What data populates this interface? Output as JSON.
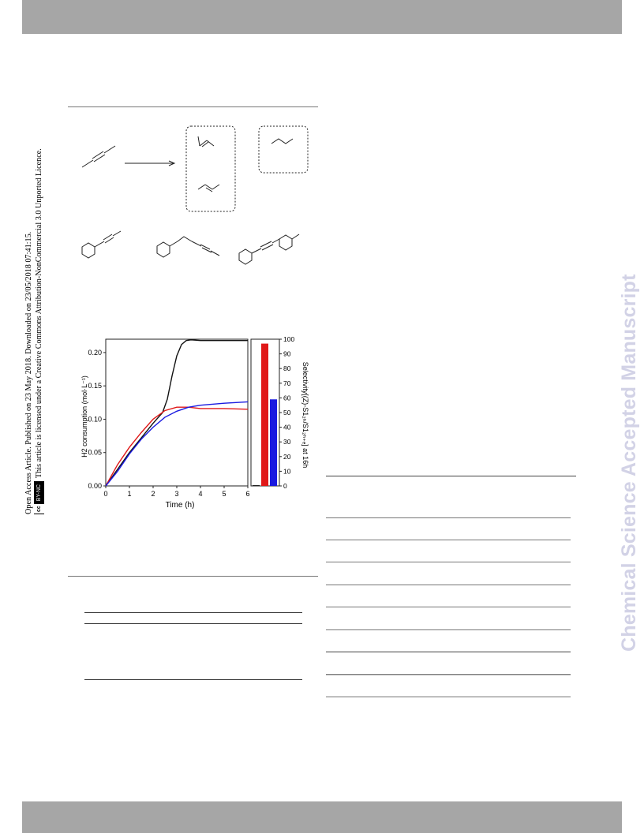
{
  "side_notice": {
    "line1": "Open Access Article. Published on 23 May 2018. Downloaded on 23/05/2018 07:41:15.",
    "line2": "This article is licensed under a Creative Commons Attribution-NonCommercial 3.0 Unported Licence.",
    "badge_cc": "cc",
    "badge_text": "BY-NC"
  },
  "watermark": "Chemical Science Accepted Manuscript",
  "chart_data": {
    "type": "line",
    "title": "",
    "xlabel": "Time (h)",
    "ylabel_left": "H2 consumption (mol·L⁻¹)",
    "ylabel_right": "Selectivity[(Z)-S1₂ₕ/S1₂ₕ₊ₑ] at 16h",
    "xlim": [
      0,
      6
    ],
    "ylim": [
      0,
      0.22
    ],
    "y2lim": [
      0,
      100
    ],
    "x_ticks": [
      "0",
      "1",
      "2",
      "3",
      "4",
      "5",
      "6"
    ],
    "y_ticks": [
      "0.00",
      "0.05",
      "0.10",
      "0.15",
      "0.20"
    ],
    "y2_ticks": [
      "0",
      "10",
      "20",
      "30",
      "40",
      "50",
      "60",
      "70",
      "80",
      "90",
      "100"
    ],
    "series": [
      {
        "color": "#111111",
        "x": [
          0,
          0.5,
          1,
          1.5,
          2,
          2.4,
          2.6,
          2.8,
          3.0,
          3.2,
          3.4,
          3.6,
          4,
          5,
          6
        ],
        "y": [
          0,
          0.025,
          0.05,
          0.072,
          0.094,
          0.11,
          0.13,
          0.165,
          0.195,
          0.212,
          0.218,
          0.219,
          0.218,
          0.218,
          0.218
        ]
      },
      {
        "color": "#e01818",
        "x": [
          0,
          0.5,
          1,
          1.5,
          2,
          2.5,
          3,
          3.5,
          4,
          5,
          6
        ],
        "y": [
          0,
          0.032,
          0.058,
          0.08,
          0.1,
          0.113,
          0.118,
          0.118,
          0.116,
          0.116,
          0.115
        ]
      },
      {
        "color": "#1a1ae0",
        "x": [
          0,
          0.5,
          1,
          1.5,
          2,
          2.5,
          3,
          3.5,
          4,
          5,
          6
        ],
        "y": [
          0,
          0.022,
          0.048,
          0.07,
          0.088,
          0.103,
          0.112,
          0.118,
          0.121,
          0.124,
          0.126
        ]
      }
    ],
    "bars": [
      {
        "color": "#111111",
        "value": 0.5
      },
      {
        "color": "#e01818",
        "value": 97
      },
      {
        "color": "#1a1ae0",
        "value": 59
      }
    ],
    "grid": false
  }
}
